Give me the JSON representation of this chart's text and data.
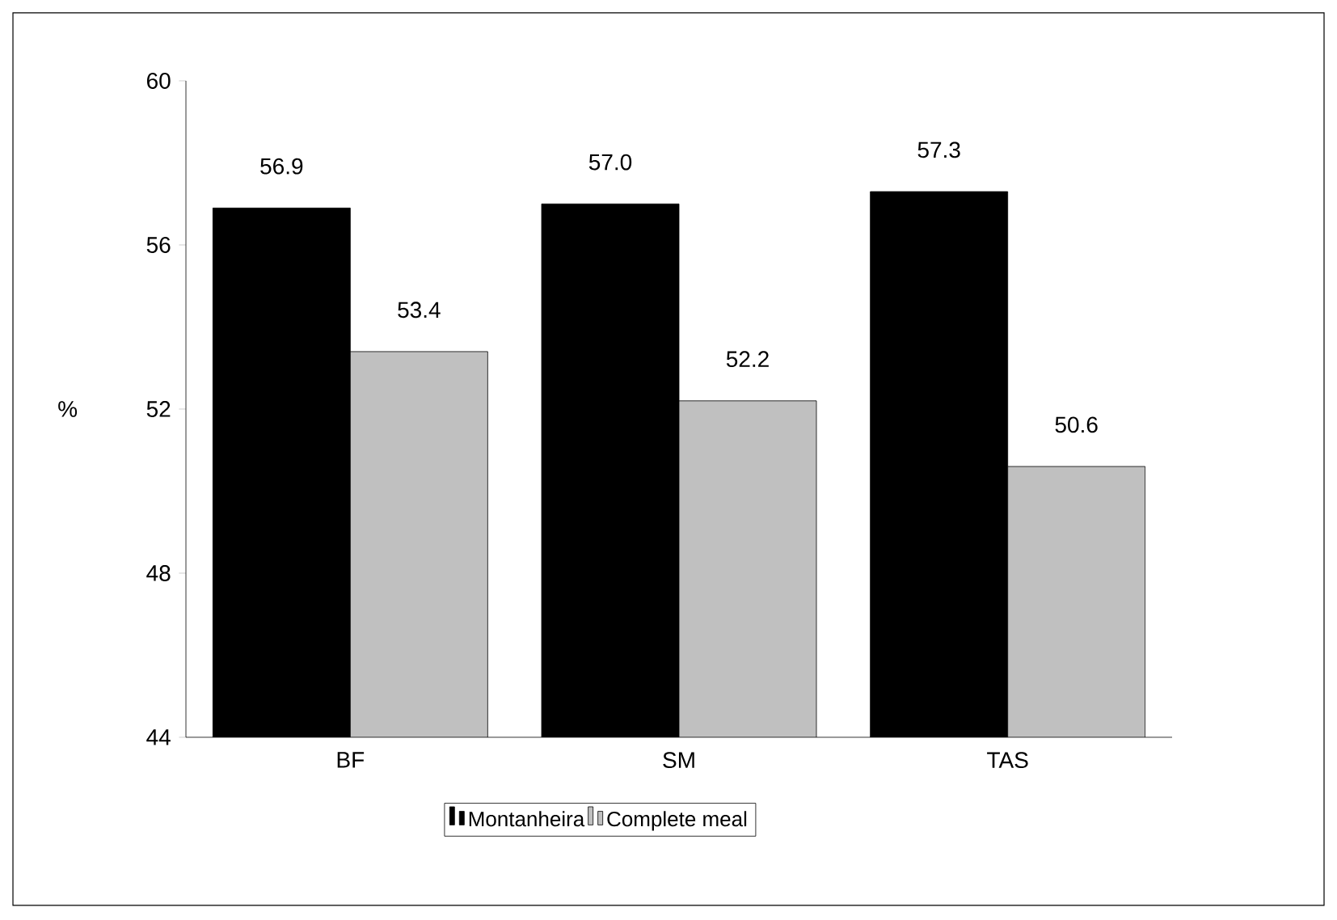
{
  "chart_data": {
    "type": "bar",
    "ylabel": "%",
    "categories": [
      "BF",
      "SM",
      "TAS"
    ],
    "series": [
      {
        "name": "Montanheira",
        "color": "#000000",
        "values": [
          56.9,
          57.0,
          57.3
        ],
        "value_labels": [
          "56.9",
          "57.0",
          "57.3"
        ]
      },
      {
        "name": "Complete meal",
        "color": "#c0c0c0",
        "values": [
          53.4,
          52.2,
          50.6
        ],
        "value_labels": [
          "53.4",
          "52.2",
          "50.6"
        ]
      }
    ],
    "ylim": [
      44,
      60
    ],
    "yticks": [
      44,
      48,
      52,
      56,
      60
    ],
    "legend": "bottom",
    "grid": false
  }
}
